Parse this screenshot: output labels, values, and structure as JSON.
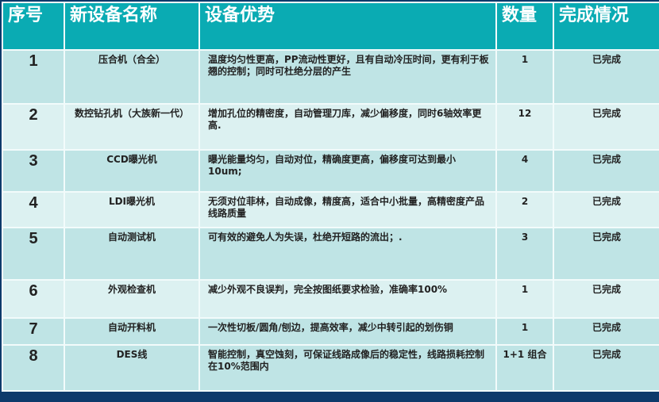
{
  "headers": {
    "no": "序号",
    "name": "新设备名称",
    "advantage": "设备优势",
    "qty": "数量",
    "status": "完成情况"
  },
  "rows": [
    {
      "no": "1",
      "name": "压合机（合全）",
      "advantage": "温度均匀性更高，PP流动性更好，且有自动冷压时间，更有利于板翘的控制；同时可杜绝分层的产生",
      "qty": "1",
      "status": "已完成"
    },
    {
      "no": "2",
      "name": "数控钻孔机（大族新一代）",
      "advantage": "增加孔位的精密度，自动管理刀库，减少偏移度，同时6轴效率更高.",
      "qty": "12",
      "status": "已完成"
    },
    {
      "no": "3",
      "name": "CCD曝光机",
      "advantage": "曝光能量均匀，自动对位，精确度更高，偏移度可达到最小10um;",
      "qty": "4",
      "status": "已完成"
    },
    {
      "no": "4",
      "name": "LDI曝光机",
      "advantage": "无须对位菲林，自动成像，精度高，适合中小批量，高精密度产品线路质量",
      "qty": "2",
      "status": "已完成"
    },
    {
      "no": "5",
      "name": "自动测试机",
      "advantage": "可有效的避免人为失误，杜绝开短路的流出；.",
      "qty": "3",
      "status": "已完成"
    },
    {
      "no": "6",
      "name": "外观检查机",
      "advantage": "减少外观不良误判，完全按图纸要求检验，准确率100%",
      "qty": "1",
      "status": "已完成"
    },
    {
      "no": "7",
      "name": "自动开料机",
      "advantage": "一次性切板/圆角/刨边，提高效率，减少中转引起的划伤铜",
      "qty": "1",
      "status": "已完成"
    },
    {
      "no": "8",
      "name": "DES线",
      "advantage": "智能控制，真空蚀刻，可保证线路成像后的稳定性，线路损耗控制在10%范围内",
      "qty": "1+1 组合",
      "status": "已完成"
    }
  ]
}
